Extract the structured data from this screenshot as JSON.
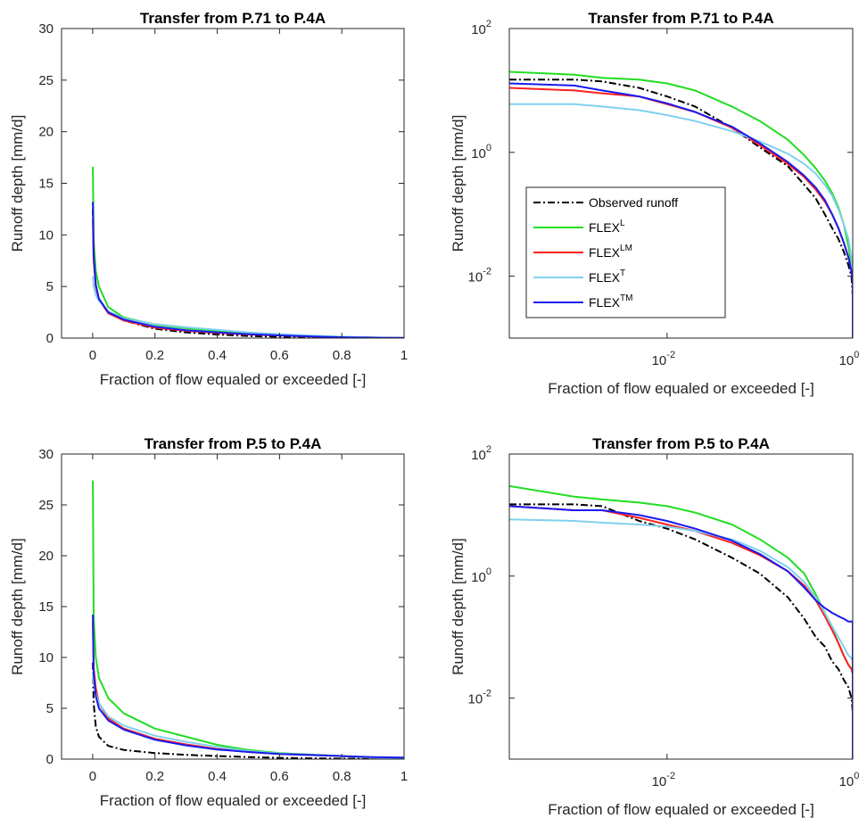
{
  "chart_data": [
    {
      "type": "line",
      "title": "Transfer from P.71 to P.4A",
      "xlabel": "Fraction of flow equaled or exceeded [-]",
      "ylabel": "Runoff depth [mm/d]",
      "xscale": "linear",
      "yscale": "linear",
      "xlim": [
        -0.1,
        1.0
      ],
      "ylim": [
        0,
        30
      ],
      "xticks": [
        0,
        0.2,
        0.4,
        0.6,
        0.8,
        1
      ],
      "xticklabels": [
        "0",
        "0.2",
        "0.4",
        "0.6",
        "0.8",
        "1"
      ],
      "yticks": [
        0,
        5,
        10,
        15,
        20,
        25,
        30
      ],
      "yticklabels": [
        "0",
        "5",
        "10",
        "15",
        "20",
        "25",
        "30"
      ],
      "series": [
        {
          "id": "obs",
          "x": [
            0.0005,
            0.003,
            0.01,
            0.02,
            0.05,
            0.1,
            0.2,
            0.3,
            0.4,
            0.5,
            0.6,
            0.7,
            0.8,
            0.9,
            1.0
          ],
          "y": [
            12.5,
            8.0,
            5.0,
            3.8,
            2.5,
            1.7,
            0.9,
            0.55,
            0.35,
            0.2,
            0.12,
            0.08,
            0.04,
            0.02,
            0.01
          ]
        },
        {
          "id": "flexL",
          "x": [
            0.0005,
            0.003,
            0.01,
            0.02,
            0.05,
            0.1,
            0.2,
            0.3,
            0.4,
            0.5,
            0.6,
            0.7,
            0.8,
            0.9,
            1.0
          ],
          "y": [
            16.6,
            9.5,
            6.5,
            5.0,
            3.0,
            2.0,
            1.3,
            0.95,
            0.7,
            0.5,
            0.35,
            0.22,
            0.12,
            0.05,
            0.01
          ]
        },
        {
          "id": "flexLM",
          "x": [
            0.0005,
            0.003,
            0.01,
            0.02,
            0.05,
            0.1,
            0.2,
            0.3,
            0.4,
            0.5,
            0.6,
            0.7,
            0.8,
            0.9,
            1.0
          ],
          "y": [
            11.5,
            7.5,
            5.0,
            3.7,
            2.4,
            1.7,
            1.0,
            0.7,
            0.5,
            0.35,
            0.25,
            0.15,
            0.08,
            0.04,
            0.01
          ]
        },
        {
          "id": "flexT",
          "x": [
            0.0005,
            0.003,
            0.01,
            0.02,
            0.05,
            0.1,
            0.2,
            0.3,
            0.4,
            0.5,
            0.6,
            0.7,
            0.8,
            0.9,
            1.0
          ],
          "y": [
            6.0,
            5.0,
            4.2,
            3.6,
            2.6,
            1.9,
            1.35,
            1.05,
            0.8,
            0.55,
            0.38,
            0.24,
            0.12,
            0.05,
            0.01
          ]
        },
        {
          "id": "flexTM",
          "x": [
            0.0005,
            0.003,
            0.01,
            0.02,
            0.05,
            0.1,
            0.2,
            0.3,
            0.4,
            0.5,
            0.6,
            0.7,
            0.8,
            0.9,
            1.0
          ],
          "y": [
            13.2,
            8.0,
            5.2,
            3.8,
            2.5,
            1.8,
            1.1,
            0.75,
            0.55,
            0.38,
            0.26,
            0.16,
            0.08,
            0.04,
            0.01
          ]
        }
      ]
    },
    {
      "type": "line",
      "title": "Transfer from P.71 to P.4A",
      "xlabel": "Fraction of flow equaled or exceeded [-]",
      "ylabel": "Runoff depth [mm/d]",
      "xscale": "log",
      "yscale": "log",
      "xlim": [
        0.0002,
        1.0
      ],
      "ylim": [
        0.001,
        100
      ],
      "xticks": [
        0.01,
        1
      ],
      "xtick_exponents": [
        "-2",
        "0"
      ],
      "yticks": [
        100,
        1,
        0.01
      ],
      "ytick_exponents": [
        "2",
        "0",
        "-2"
      ],
      "legend": "center-left",
      "series": [
        {
          "id": "obs",
          "x": [
            0.0002,
            0.001,
            0.002,
            0.005,
            0.01,
            0.02,
            0.05,
            0.1,
            0.2,
            0.3,
            0.4,
            0.5,
            0.6,
            0.7,
            0.8,
            0.9,
            0.97,
            0.999,
            1.0
          ],
          "y": [
            15,
            15,
            14,
            11,
            8,
            5.5,
            2.5,
            1.2,
            0.6,
            0.3,
            0.18,
            0.1,
            0.06,
            0.04,
            0.025,
            0.015,
            0.01,
            0.005,
            0.001
          ]
        },
        {
          "id": "flexL",
          "x": [
            0.0002,
            0.001,
            0.002,
            0.005,
            0.01,
            0.02,
            0.05,
            0.1,
            0.2,
            0.3,
            0.4,
            0.5,
            0.6,
            0.7,
            0.8,
            0.9,
            0.97,
            0.999,
            1.0
          ],
          "y": [
            20,
            18,
            16,
            15,
            13,
            10,
            5.5,
            3.2,
            1.6,
            0.9,
            0.55,
            0.35,
            0.22,
            0.13,
            0.07,
            0.03,
            0.015,
            0.008,
            0.001
          ]
        },
        {
          "id": "flexLM",
          "x": [
            0.0002,
            0.001,
            0.002,
            0.005,
            0.01,
            0.02,
            0.05,
            0.1,
            0.2,
            0.3,
            0.4,
            0.5,
            0.6,
            0.7,
            0.8,
            0.9,
            0.97,
            0.999,
            1.0
          ],
          "y": [
            11,
            10,
            9,
            8,
            6,
            4.5,
            2.5,
            1.3,
            0.65,
            0.4,
            0.25,
            0.16,
            0.1,
            0.06,
            0.035,
            0.02,
            0.012,
            0.008,
            0.001
          ]
        },
        {
          "id": "flexT",
          "x": [
            0.0002,
            0.001,
            0.002,
            0.005,
            0.01,
            0.02,
            0.05,
            0.1,
            0.2,
            0.3,
            0.4,
            0.5,
            0.6,
            0.7,
            0.8,
            0.9,
            0.97,
            0.999,
            1.0
          ],
          "y": [
            6,
            6,
            5.5,
            4.8,
            4,
            3.2,
            2.2,
            1.5,
            0.95,
            0.65,
            0.45,
            0.3,
            0.2,
            0.12,
            0.07,
            0.04,
            0.02,
            0.01,
            0.001
          ]
        },
        {
          "id": "flexTM",
          "x": [
            0.0002,
            0.001,
            0.002,
            0.005,
            0.01,
            0.02,
            0.05,
            0.1,
            0.2,
            0.3,
            0.4,
            0.5,
            0.6,
            0.7,
            0.8,
            0.9,
            0.97,
            0.999,
            1.0
          ],
          "y": [
            13,
            12,
            10,
            8,
            6.2,
            4.5,
            2.6,
            1.4,
            0.7,
            0.42,
            0.27,
            0.17,
            0.1,
            0.06,
            0.035,
            0.02,
            0.012,
            0.008,
            0.001
          ]
        }
      ]
    },
    {
      "type": "line",
      "title": "Transfer from P.5 to P.4A",
      "xlabel": "Fraction of flow equaled or exceeded [-]",
      "ylabel": "Runoff depth [mm/d]",
      "xscale": "linear",
      "yscale": "linear",
      "xlim": [
        -0.1,
        1.0
      ],
      "ylim": [
        0,
        30
      ],
      "xticks": [
        0,
        0.2,
        0.4,
        0.6,
        0.8,
        1
      ],
      "xticklabels": [
        "0",
        "0.2",
        "0.4",
        "0.6",
        "0.8",
        "1"
      ],
      "yticks": [
        0,
        5,
        10,
        15,
        20,
        25,
        30
      ],
      "yticklabels": [
        "0",
        "5",
        "10",
        "15",
        "20",
        "25",
        "30"
      ],
      "series": [
        {
          "id": "obs",
          "x": [
            0.0005,
            0.003,
            0.01,
            0.02,
            0.05,
            0.1,
            0.2,
            0.3,
            0.4,
            0.5,
            0.6,
            0.7,
            0.8,
            0.9,
            1.0
          ],
          "y": [
            9.5,
            5.5,
            3.2,
            2.2,
            1.3,
            0.9,
            0.6,
            0.42,
            0.3,
            0.2,
            0.12,
            0.08,
            0.05,
            0.02,
            0.01
          ]
        },
        {
          "id": "flexL",
          "x": [
            0.0005,
            0.003,
            0.01,
            0.02,
            0.05,
            0.1,
            0.2,
            0.3,
            0.4,
            0.5,
            0.6,
            0.7,
            0.8,
            0.9,
            1.0
          ],
          "y": [
            27.4,
            14,
            10,
            8,
            6,
            4.5,
            3.0,
            2.2,
            1.4,
            0.9,
            0.6,
            0.45,
            0.3,
            0.15,
            0.05
          ]
        },
        {
          "id": "flexLM",
          "x": [
            0.0005,
            0.003,
            0.01,
            0.02,
            0.05,
            0.1,
            0.2,
            0.3,
            0.4,
            0.5,
            0.6,
            0.7,
            0.8,
            0.9,
            1.0
          ],
          "y": [
            13.5,
            9,
            7,
            5.5,
            4.0,
            3.0,
            2.0,
            1.45,
            1.0,
            0.7,
            0.5,
            0.4,
            0.3,
            0.15,
            0.05
          ]
        },
        {
          "id": "flexT",
          "x": [
            0.0005,
            0.003,
            0.01,
            0.02,
            0.05,
            0.1,
            0.2,
            0.3,
            0.4,
            0.5,
            0.6,
            0.7,
            0.8,
            0.9,
            1.0
          ],
          "y": [
            8.5,
            7.5,
            6.5,
            5.5,
            4.2,
            3.3,
            2.3,
            1.7,
            1.2,
            0.8,
            0.55,
            0.42,
            0.3,
            0.15,
            0.05
          ]
        },
        {
          "id": "flexTM",
          "x": [
            0.0005,
            0.003,
            0.01,
            0.02,
            0.05,
            0.1,
            0.2,
            0.3,
            0.4,
            0.5,
            0.6,
            0.7,
            0.8,
            0.9,
            1.0
          ],
          "y": [
            14.2,
            8.5,
            6.2,
            5.0,
            3.8,
            2.9,
            1.9,
            1.35,
            0.95,
            0.7,
            0.5,
            0.4,
            0.3,
            0.2,
            0.15
          ]
        }
      ]
    },
    {
      "type": "line",
      "title": "Transfer from P.5 to P.4A",
      "xlabel": "Fraction of flow equaled or exceeded [-]",
      "ylabel": "Runoff depth [mm/d]",
      "xscale": "log",
      "yscale": "log",
      "xlim": [
        0.0002,
        1.0
      ],
      "ylim": [
        0.001,
        100
      ],
      "xticks": [
        0.01,
        1
      ],
      "xtick_exponents": [
        "-2",
        "0"
      ],
      "yticks": [
        100,
        1,
        0.01
      ],
      "ytick_exponents": [
        "2",
        "0",
        "-2"
      ],
      "series": [
        {
          "id": "obs",
          "x": [
            0.0002,
            0.001,
            0.002,
            0.005,
            0.01,
            0.02,
            0.05,
            0.1,
            0.2,
            0.3,
            0.4,
            0.5,
            0.6,
            0.7,
            0.8,
            0.9,
            0.97,
            0.999,
            1.0
          ],
          "y": [
            15,
            15,
            14,
            8,
            6,
            4,
            2,
            1.1,
            0.45,
            0.2,
            0.1,
            0.07,
            0.04,
            0.03,
            0.02,
            0.015,
            0.01,
            0.006,
            0.001
          ]
        },
        {
          "id": "flexL",
          "x": [
            0.0002,
            0.001,
            0.002,
            0.005,
            0.01,
            0.02,
            0.05,
            0.1,
            0.2,
            0.3,
            0.4,
            0.5,
            0.6,
            0.7,
            0.8,
            0.9,
            0.97,
            0.999,
            1.0
          ],
          "y": [
            30,
            20,
            18,
            16,
            14,
            11,
            7,
            4,
            2,
            1.1,
            0.5,
            0.25,
            0.14,
            0.08,
            0.05,
            0.035,
            0.03,
            0.025,
            0.001
          ]
        },
        {
          "id": "flexLM",
          "x": [
            0.0002,
            0.001,
            0.002,
            0.005,
            0.01,
            0.02,
            0.05,
            0.1,
            0.2,
            0.3,
            0.4,
            0.5,
            0.6,
            0.7,
            0.8,
            0.9,
            0.97,
            0.999,
            1.0
          ],
          "y": [
            14,
            12,
            12,
            9,
            7,
            5.5,
            3.5,
            2.2,
            1.2,
            0.7,
            0.4,
            0.22,
            0.13,
            0.08,
            0.05,
            0.035,
            0.03,
            0.025,
            0.001
          ]
        },
        {
          "id": "flexT",
          "x": [
            0.0002,
            0.001,
            0.002,
            0.005,
            0.01,
            0.02,
            0.05,
            0.1,
            0.2,
            0.3,
            0.4,
            0.5,
            0.6,
            0.7,
            0.8,
            0.9,
            0.97,
            0.999,
            1.0
          ],
          "y": [
            8.5,
            8,
            7.5,
            7,
            6.5,
            5.5,
            4,
            2.6,
            1.4,
            0.8,
            0.45,
            0.25,
            0.15,
            0.1,
            0.07,
            0.05,
            0.045,
            0.04,
            0.001
          ]
        },
        {
          "id": "flexTM",
          "x": [
            0.0002,
            0.001,
            0.002,
            0.005,
            0.01,
            0.02,
            0.05,
            0.1,
            0.2,
            0.3,
            0.4,
            0.5,
            0.6,
            0.7,
            0.8,
            0.9,
            0.97,
            0.999,
            1.0
          ],
          "y": [
            14,
            12,
            12,
            10,
            8,
            6,
            3.8,
            2.3,
            1.2,
            0.65,
            0.4,
            0.3,
            0.25,
            0.22,
            0.2,
            0.18,
            0.18,
            0.18,
            0.001
          ]
        }
      ]
    }
  ],
  "legend": {
    "entries": [
      {
        "id": "obs",
        "base": "Observed runoff",
        "sup": "",
        "color": "#000000",
        "dash": "dashdot"
      },
      {
        "id": "flexL",
        "base": "FLEX",
        "sup": "L",
        "color": "#22dd22",
        "dash": "solid"
      },
      {
        "id": "flexLM",
        "base": "FLEX",
        "sup": "LM",
        "color": "#ff2020",
        "dash": "solid"
      },
      {
        "id": "flexT",
        "base": "FLEX",
        "sup": "T",
        "color": "#80d0ee",
        "dash": "solid"
      },
      {
        "id": "flexTM",
        "base": "FLEX",
        "sup": "TM",
        "color": "#1a1aee",
        "dash": "solid"
      }
    ]
  },
  "colors": {
    "obs": "#000000",
    "flexL": "#22dd22",
    "flexLM": "#ff2020",
    "flexT": "#80d0ee",
    "flexTM": "#1a1aee",
    "axis": "#262626"
  }
}
